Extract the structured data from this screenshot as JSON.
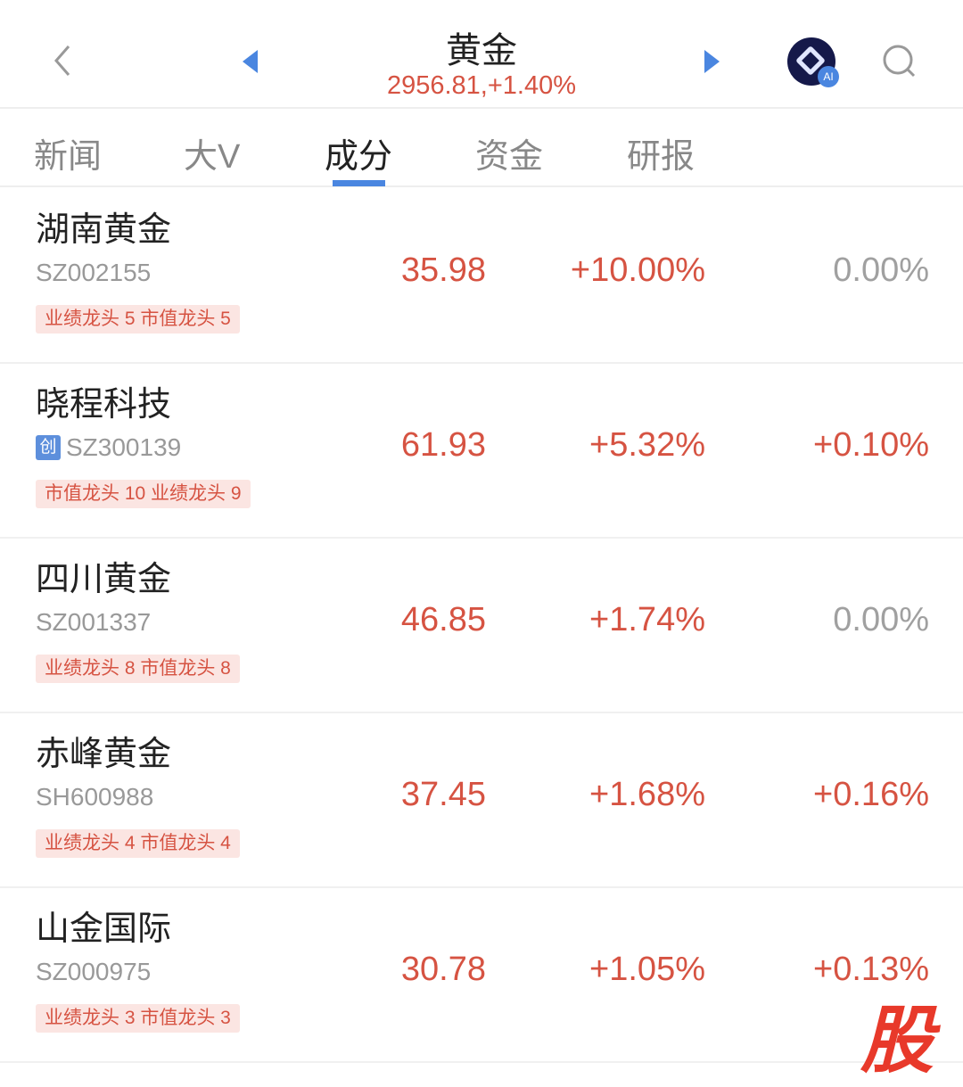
{
  "header": {
    "title": "黄金",
    "subtitle": "2956.81,+1.40%"
  },
  "tabs": [
    {
      "label": "新闻"
    },
    {
      "label": "大V"
    },
    {
      "label": "成分",
      "active": true
    },
    {
      "label": "资金"
    },
    {
      "label": "研报"
    }
  ],
  "stocks": [
    {
      "name": "湖南黄金",
      "code": "SZ002155",
      "tag": "业绩龙头 5  市值龙头 5",
      "price": "35.98",
      "change": "+10.00%",
      "speed": "0.00%"
    },
    {
      "name": "晓程科技",
      "code": "SZ300139",
      "board": "创",
      "tag": "市值龙头 10  业绩龙头 9",
      "price": "61.93",
      "change": "+5.32%",
      "speed": "+0.10%"
    },
    {
      "name": "四川黄金",
      "code": "SZ001337",
      "tag": "业绩龙头 8  市值龙头 8",
      "price": "46.85",
      "change": "+1.74%",
      "speed": "0.00%"
    },
    {
      "name": "赤峰黄金",
      "code": "SH600988",
      "tag": "业绩龙头 4  市值龙头 4",
      "price": "37.45",
      "change": "+1.68%",
      "speed": "+0.16%"
    },
    {
      "name": "山金国际",
      "code": "SZ000975",
      "tag": "业绩龙头 3  市值龙头 3",
      "price": "30.78",
      "change": "+1.05%",
      "speed": "+0.13%"
    }
  ],
  "ai_badge": "AI",
  "watermark": "股",
  "colors": {
    "up": "#d65342",
    "accent": "#4a86e0",
    "neutral": "#a0a0a0"
  }
}
